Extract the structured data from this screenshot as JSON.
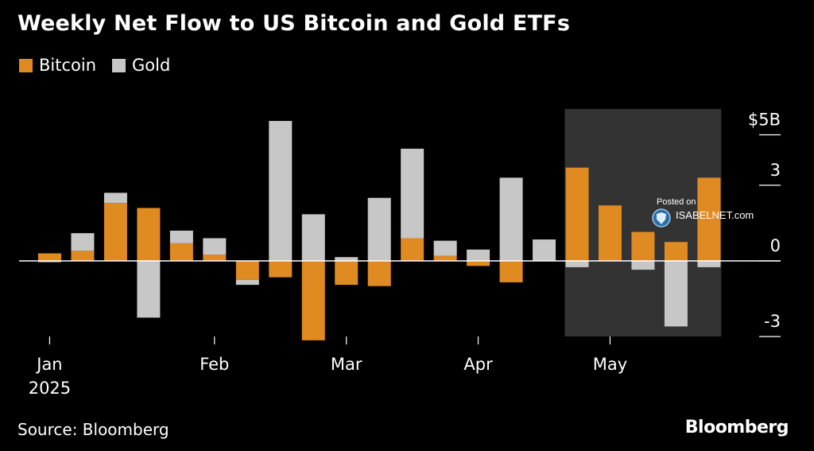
{
  "title": "Weekly Net Flow to US Bitcoin and Gold ETFs",
  "legend": [
    {
      "label": "Bitcoin",
      "color": "#e08a22"
    },
    {
      "label": "Gold",
      "color": "#c7c7c7"
    }
  ],
  "source": "Source: Bloomberg",
  "brand": "Bloomberg",
  "watermark": {
    "posted": "Posted on",
    "site": "ISABELNET.com"
  },
  "chart_data": {
    "type": "bar",
    "stacked": true,
    "title": "Weekly Net Flow to US Bitcoin and Gold ETFs",
    "unit_label": "$5B",
    "ylim": [
      -3.1,
      5.4
    ],
    "yticks": [
      5,
      3,
      0,
      -3
    ],
    "ytick_labels": [
      "$5B",
      "3",
      "0",
      "-3"
    ],
    "x_tick_labels": [
      {
        "label": "Jan",
        "sublabel": "2025",
        "week_index": 0.3
      },
      {
        "label": "Feb",
        "sublabel": "",
        "week_index": 5.3
      },
      {
        "label": "Mar",
        "sublabel": "",
        "week_index": 9.3
      },
      {
        "label": "Apr",
        "sublabel": "",
        "week_index": 13.3
      },
      {
        "label": "May",
        "sublabel": "",
        "week_index": 17.3
      }
    ],
    "highlight_weeks": [
      16,
      20
    ],
    "series": [
      {
        "name": "Bitcoin",
        "color": "#e08a22",
        "values": [
          0.3,
          0.4,
          2.3,
          2.1,
          0.7,
          0.25,
          -0.75,
          -0.65,
          -3.15,
          -0.95,
          -1.0,
          0.9,
          0.2,
          -0.2,
          -0.85,
          0.0,
          3.7,
          2.2,
          1.15,
          0.75,
          3.3
        ]
      },
      {
        "name": "Gold",
        "color": "#c7c7c7",
        "values": [
          -0.05,
          0.7,
          0.4,
          -2.25,
          0.5,
          0.65,
          -0.2,
          5.55,
          1.85,
          0.15,
          2.5,
          3.55,
          0.6,
          0.45,
          3.3,
          0.85,
          -0.25,
          0.0,
          -0.35,
          -2.6,
          -0.25
        ]
      }
    ]
  }
}
